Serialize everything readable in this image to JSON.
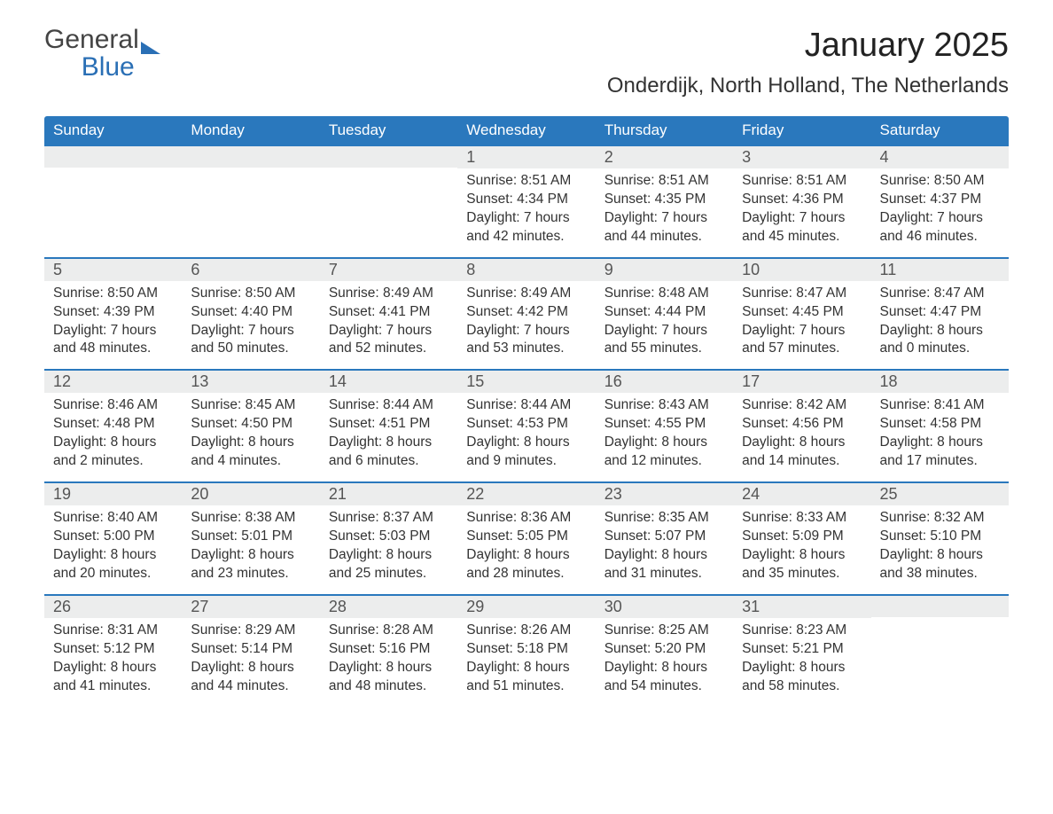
{
  "brand": {
    "part1": "General",
    "part2": "Blue"
  },
  "title": "January 2025",
  "location": "Onderdijk, North Holland, The Netherlands",
  "colors": {
    "header_bg": "#2a78bd",
    "header_text": "#ffffff",
    "daybar_bg": "#eceded",
    "week_border": "#2a78bd",
    "body_text": "#333333",
    "page_bg": "#ffffff"
  },
  "weekdays": [
    "Sunday",
    "Monday",
    "Tuesday",
    "Wednesday",
    "Thursday",
    "Friday",
    "Saturday"
  ],
  "weeks": [
    [
      null,
      null,
      null,
      {
        "n": "1",
        "sunrise": "8:51 AM",
        "sunset": "4:34 PM",
        "dl": "7 hours and 42 minutes."
      },
      {
        "n": "2",
        "sunrise": "8:51 AM",
        "sunset": "4:35 PM",
        "dl": "7 hours and 44 minutes."
      },
      {
        "n": "3",
        "sunrise": "8:51 AM",
        "sunset": "4:36 PM",
        "dl": "7 hours and 45 minutes."
      },
      {
        "n": "4",
        "sunrise": "8:50 AM",
        "sunset": "4:37 PM",
        "dl": "7 hours and 46 minutes."
      }
    ],
    [
      {
        "n": "5",
        "sunrise": "8:50 AM",
        "sunset": "4:39 PM",
        "dl": "7 hours and 48 minutes."
      },
      {
        "n": "6",
        "sunrise": "8:50 AM",
        "sunset": "4:40 PM",
        "dl": "7 hours and 50 minutes."
      },
      {
        "n": "7",
        "sunrise": "8:49 AM",
        "sunset": "4:41 PM",
        "dl": "7 hours and 52 minutes."
      },
      {
        "n": "8",
        "sunrise": "8:49 AM",
        "sunset": "4:42 PM",
        "dl": "7 hours and 53 minutes."
      },
      {
        "n": "9",
        "sunrise": "8:48 AM",
        "sunset": "4:44 PM",
        "dl": "7 hours and 55 minutes."
      },
      {
        "n": "10",
        "sunrise": "8:47 AM",
        "sunset": "4:45 PM",
        "dl": "7 hours and 57 minutes."
      },
      {
        "n": "11",
        "sunrise": "8:47 AM",
        "sunset": "4:47 PM",
        "dl": "8 hours and 0 minutes."
      }
    ],
    [
      {
        "n": "12",
        "sunrise": "8:46 AM",
        "sunset": "4:48 PM",
        "dl": "8 hours and 2 minutes."
      },
      {
        "n": "13",
        "sunrise": "8:45 AM",
        "sunset": "4:50 PM",
        "dl": "8 hours and 4 minutes."
      },
      {
        "n": "14",
        "sunrise": "8:44 AM",
        "sunset": "4:51 PM",
        "dl": "8 hours and 6 minutes."
      },
      {
        "n": "15",
        "sunrise": "8:44 AM",
        "sunset": "4:53 PM",
        "dl": "8 hours and 9 minutes."
      },
      {
        "n": "16",
        "sunrise": "8:43 AM",
        "sunset": "4:55 PM",
        "dl": "8 hours and 12 minutes."
      },
      {
        "n": "17",
        "sunrise": "8:42 AM",
        "sunset": "4:56 PM",
        "dl": "8 hours and 14 minutes."
      },
      {
        "n": "18",
        "sunrise": "8:41 AM",
        "sunset": "4:58 PM",
        "dl": "8 hours and 17 minutes."
      }
    ],
    [
      {
        "n": "19",
        "sunrise": "8:40 AM",
        "sunset": "5:00 PM",
        "dl": "8 hours and 20 minutes."
      },
      {
        "n": "20",
        "sunrise": "8:38 AM",
        "sunset": "5:01 PM",
        "dl": "8 hours and 23 minutes."
      },
      {
        "n": "21",
        "sunrise": "8:37 AM",
        "sunset": "5:03 PM",
        "dl": "8 hours and 25 minutes."
      },
      {
        "n": "22",
        "sunrise": "8:36 AM",
        "sunset": "5:05 PM",
        "dl": "8 hours and 28 minutes."
      },
      {
        "n": "23",
        "sunrise": "8:35 AM",
        "sunset": "5:07 PM",
        "dl": "8 hours and 31 minutes."
      },
      {
        "n": "24",
        "sunrise": "8:33 AM",
        "sunset": "5:09 PM",
        "dl": "8 hours and 35 minutes."
      },
      {
        "n": "25",
        "sunrise": "8:32 AM",
        "sunset": "5:10 PM",
        "dl": "8 hours and 38 minutes."
      }
    ],
    [
      {
        "n": "26",
        "sunrise": "8:31 AM",
        "sunset": "5:12 PM",
        "dl": "8 hours and 41 minutes."
      },
      {
        "n": "27",
        "sunrise": "8:29 AM",
        "sunset": "5:14 PM",
        "dl": "8 hours and 44 minutes."
      },
      {
        "n": "28",
        "sunrise": "8:28 AM",
        "sunset": "5:16 PM",
        "dl": "8 hours and 48 minutes."
      },
      {
        "n": "29",
        "sunrise": "8:26 AM",
        "sunset": "5:18 PM",
        "dl": "8 hours and 51 minutes."
      },
      {
        "n": "30",
        "sunrise": "8:25 AM",
        "sunset": "5:20 PM",
        "dl": "8 hours and 54 minutes."
      },
      {
        "n": "31",
        "sunrise": "8:23 AM",
        "sunset": "5:21 PM",
        "dl": "8 hours and 58 minutes."
      },
      null
    ]
  ],
  "labels": {
    "sunrise_prefix": "Sunrise: ",
    "sunset_prefix": "Sunset: ",
    "daylight_prefix": "Daylight: "
  }
}
